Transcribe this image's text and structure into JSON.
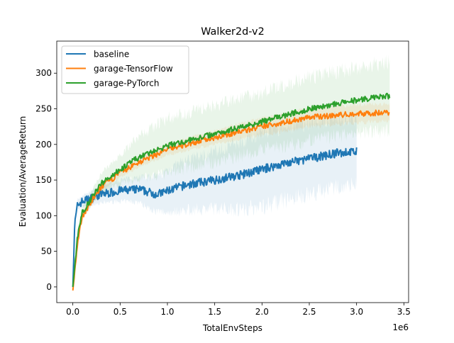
{
  "chart_data": {
    "type": "line",
    "title": "Walker2d-v2",
    "xlabel": "TotalEnvSteps",
    "ylabel": "Evaluation/AverageReturn",
    "x_offset_label": "1e6",
    "xlim": [
      -0.17,
      3.55
    ],
    "ylim": [
      -22,
      345
    ],
    "xticks": [
      0.0,
      0.5,
      1.0,
      1.5,
      2.0,
      2.5,
      3.0,
      3.5
    ],
    "xtick_labels": [
      "0.0",
      "0.5",
      "1.0",
      "1.5",
      "2.0",
      "2.5",
      "3.0",
      "3.5"
    ],
    "yticks": [
      0,
      50,
      100,
      150,
      200,
      250,
      300
    ],
    "ytick_labels": [
      "0",
      "50",
      "100",
      "150",
      "200",
      "250",
      "300"
    ],
    "grid": false,
    "legend_position": "top-left",
    "series": [
      {
        "name": "baseline",
        "color": "#1f77b4",
        "noise": 6,
        "x": [
          0,
          0.02,
          0.05,
          0.1,
          0.2,
          0.3,
          0.5,
          0.7,
          0.8,
          0.9,
          1.0,
          1.2,
          1.5,
          1.8,
          2.0,
          2.2,
          2.5,
          2.8,
          3.0
        ],
        "y": [
          0,
          90,
          115,
          120,
          125,
          130,
          135,
          137,
          133,
          130,
          135,
          143,
          150,
          158,
          165,
          172,
          180,
          188,
          190
        ],
        "std": [
          2,
          10,
          8,
          8,
          10,
          12,
          15,
          18,
          22,
          25,
          30,
          35,
          40,
          48,
          52,
          52,
          50,
          48,
          45
        ]
      },
      {
        "name": "garage-TensorFlow",
        "color": "#ff7f0e",
        "noise": 4,
        "x": [
          0,
          0.05,
          0.1,
          0.2,
          0.3,
          0.5,
          0.7,
          1.0,
          1.5,
          2.0,
          2.5,
          3.0,
          3.35
        ],
        "y": [
          -5,
          60,
          100,
          120,
          140,
          160,
          175,
          193,
          210,
          225,
          238,
          243,
          245
        ],
        "std": [
          2,
          8,
          6,
          6,
          6,
          6,
          7,
          8,
          10,
          12,
          13,
          13,
          12
        ]
      },
      {
        "name": "garage-PyTorch",
        "color": "#2ca02c",
        "noise": 4,
        "x": [
          0,
          0.05,
          0.1,
          0.2,
          0.3,
          0.5,
          0.7,
          1.0,
          1.5,
          2.0,
          2.5,
          3.0,
          3.35
        ],
        "y": [
          0,
          70,
          105,
          125,
          145,
          165,
          182,
          198,
          215,
          232,
          250,
          262,
          268
        ],
        "std": [
          2,
          10,
          8,
          10,
          15,
          20,
          30,
          38,
          40,
          40,
          45,
          45,
          48
        ]
      }
    ]
  }
}
